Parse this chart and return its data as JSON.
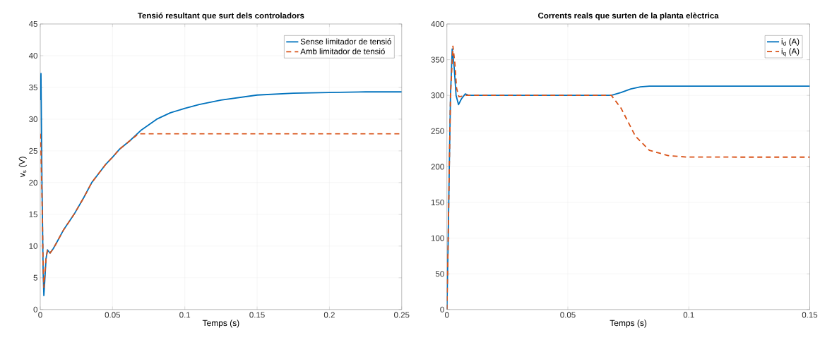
{
  "chart_data": [
    {
      "type": "line",
      "title": "Tensió resultant que surt dels controladors",
      "xlabel": "Temps (s)",
      "ylabel": "v$_{s}$ (V)",
      "xlim": [
        0,
        0.25
      ],
      "ylim": [
        0,
        45
      ],
      "xticks": [
        0,
        0.05,
        0.1,
        0.15,
        0.2,
        0.25
      ],
      "yticks": [
        0,
        5,
        10,
        15,
        20,
        25,
        30,
        35,
        40,
        45
      ],
      "grid": true,
      "legend": "top right",
      "marker": "none",
      "series": [
        {
          "name": "Sense limitador de tensió",
          "color": "#0072bd",
          "line_style": "solid",
          "x": [
            0,
            0.0005,
            0.0012,
            0.002,
            0.0025,
            0.003,
            0.004,
            0.005,
            0.0068,
            0.009,
            0.011,
            0.016,
            0.0234,
            0.03,
            0.0356,
            0.045,
            0.05,
            0.055,
            0.062,
            0.07,
            0.0806,
            0.09,
            0.1,
            0.11,
            0.125,
            0.15,
            0.175,
            0.2,
            0.225,
            0.25
          ],
          "values": [
            33,
            37.2,
            20,
            6,
            2.2,
            4,
            8,
            9.4,
            8.9,
            9.6,
            10.4,
            12.5,
            15,
            17.6,
            20,
            22.8,
            24,
            25.3,
            26.6,
            28.3,
            30,
            31,
            31.7,
            32.3,
            33,
            33.8,
            34.1,
            34.2,
            34.3,
            34.3
          ]
        },
        {
          "name": "Amb limitador de tensió",
          "color": "#d95319",
          "line_style": "dashed",
          "x": [
            0,
            0.0005,
            0.0012,
            0.002,
            0.0025,
            0.003,
            0.004,
            0.005,
            0.0068,
            0.009,
            0.011,
            0.016,
            0.0234,
            0.03,
            0.0356,
            0.045,
            0.05,
            0.055,
            0.062,
            0.068,
            0.1,
            0.15,
            0.2,
            0.25
          ],
          "values": [
            27.7,
            25,
            18,
            7,
            3.5,
            5,
            8,
            9.4,
            8.9,
            9.6,
            10.4,
            12.5,
            15,
            17.6,
            20,
            22.8,
            24,
            25.3,
            26.6,
            27.7,
            27.7,
            27.7,
            27.7,
            27.7
          ]
        }
      ]
    },
    {
      "type": "line",
      "title": "Corrents reals que surten de la planta elèctrica",
      "xlabel": "Temps (s)",
      "xlim": [
        0,
        0.15
      ],
      "ylim": [
        0,
        400
      ],
      "xticks": [
        0,
        0.05,
        0.1,
        0.15
      ],
      "yticks": [
        0,
        50,
        100,
        150,
        200,
        250,
        300,
        350,
        400
      ],
      "grid": true,
      "legend": "top right",
      "marker": "none",
      "series": [
        {
          "name": "i$_{d}$ (A)",
          "color": "#0072bd",
          "line_style": "solid",
          "x": [
            0,
            0.0005,
            0.001,
            0.0015,
            0.0022,
            0.003,
            0.0038,
            0.0048,
            0.006,
            0.0076,
            0.009,
            0.01,
            0.03,
            0.05,
            0.068,
            0.072,
            0.076,
            0.08,
            0.0837,
            0.09,
            0.1,
            0.12,
            0.15
          ],
          "values": [
            0,
            90,
            200,
            300,
            365,
            340,
            300,
            287,
            295,
            302,
            300,
            300,
            300,
            300,
            300,
            304,
            309,
            312,
            313,
            313,
            313,
            313,
            313
          ]
        },
        {
          "name": "i$_{q}$ (A)",
          "color": "#d95319",
          "line_style": "dashed",
          "x": [
            0,
            0.0005,
            0.001,
            0.0015,
            0.0025,
            0.0033,
            0.004,
            0.005,
            0.0065,
            0.008,
            0.01,
            0.03,
            0.05,
            0.068,
            0.072,
            0.0779,
            0.0837,
            0.0915,
            0.0992,
            0.12,
            0.15
          ],
          "values": [
            0,
            90,
            200,
            300,
            369,
            345,
            310,
            298,
            299,
            300,
            300,
            300,
            300,
            300,
            282,
            243,
            223,
            215.6,
            213.6,
            213.5,
            213.5
          ]
        }
      ]
    }
  ]
}
